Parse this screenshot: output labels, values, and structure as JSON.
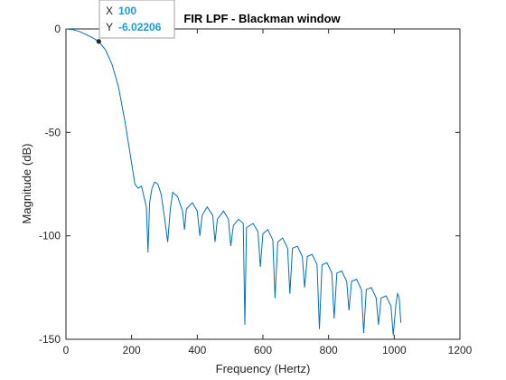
{
  "chart_data": {
    "type": "line",
    "title": "FIR LPF - Blackman window",
    "xlabel": "Frequency (Hertz)",
    "ylabel": "Magnitude (dB)",
    "xlim": [
      0,
      1200
    ],
    "ylim": [
      -150,
      0
    ],
    "xticks": [
      0,
      200,
      400,
      600,
      800,
      1000,
      1200
    ],
    "yticks": [
      0,
      -50,
      -100,
      -150
    ],
    "grid": false,
    "line_color": "#0072BD",
    "series": [
      {
        "name": "",
        "x": [
          0,
          20,
          40,
          60,
          80,
          100,
          120,
          140,
          160,
          180,
          200,
          210,
          220,
          230,
          245,
          250,
          255,
          262,
          270,
          280,
          290,
          300,
          310,
          318,
          325,
          340,
          355,
          361,
          367,
          385,
          400,
          408,
          415,
          430,
          447,
          454,
          461,
          480,
          495,
          502,
          510,
          525,
          540,
          545,
          550,
          570,
          585,
          592,
          600,
          615,
          630,
          637,
          645,
          660,
          675,
          682,
          690,
          705,
          720,
          727,
          735,
          750,
          765,
          772,
          780,
          795,
          810,
          817,
          825,
          840,
          855,
          862,
          870,
          885,
          900,
          907,
          915,
          930,
          945,
          952,
          960,
          975,
          990,
          997,
          1005,
          1010,
          1015,
          1020
        ],
        "y": [
          0,
          -0.3,
          -1.2,
          -2.6,
          -4.2,
          -6.02206,
          -10,
          -17,
          -28,
          -45,
          -65,
          -75,
          -77,
          -76,
          -86,
          -108,
          -84,
          -77,
          -74,
          -75,
          -80,
          -91,
          -103,
          -87,
          -79,
          -81,
          -88,
          -97,
          -87,
          -84,
          -88,
          -100,
          -90,
          -86,
          -90,
          -103,
          -92,
          -88,
          -92,
          -105,
          -95,
          -92,
          -94,
          -143,
          -96,
          -94,
          -98,
          -115,
          -99,
          -97,
          -102,
          -130,
          -103,
          -101,
          -106,
          -128,
          -106,
          -105,
          -110,
          -125,
          -110,
          -109,
          -114,
          -145,
          -114,
          -113,
          -118,
          -140,
          -118,
          -117,
          -122,
          -136,
          -122,
          -121,
          -126,
          -147,
          -126,
          -125,
          -130,
          -143,
          -130,
          -129,
          -134,
          -148,
          -133,
          -128,
          -130,
          -142
        ]
      }
    ],
    "datatip": {
      "x_label": "X",
      "x_value": "100",
      "y_label": "Y",
      "y_value": "-6.02206",
      "x": 100,
      "y": -6.02206
    }
  }
}
